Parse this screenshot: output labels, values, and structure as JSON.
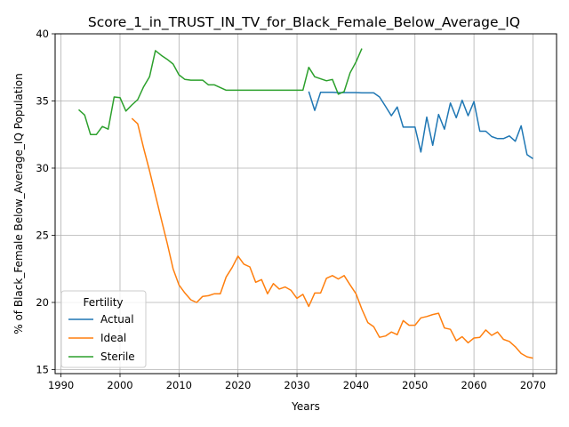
{
  "chart_data": {
    "type": "line",
    "title": "Score_1_in_TRUST_IN_TV_for_Black_Female_Below_Average_IQ",
    "xlabel": "Years",
    "ylabel": "% of Black_Female Below_Average_IQ Population",
    "xlim": [
      1989,
      2074
    ],
    "ylim": [
      14.7,
      40.0
    ],
    "xticks": [
      1990,
      2000,
      2010,
      2020,
      2030,
      2040,
      2050,
      2060,
      2070
    ],
    "yticks": [
      15,
      20,
      25,
      30,
      35,
      40
    ],
    "grid": true,
    "legend": {
      "title": "Fertility",
      "placement": "lower-left"
    },
    "series": [
      {
        "name": "Actual",
        "color": "#1f77b4",
        "x": [
          2032,
          2033,
          2034,
          2035,
          2036,
          2037,
          2038,
          2039,
          2040,
          2041,
          2042,
          2043,
          2044,
          2045,
          2046,
          2047,
          2048,
          2049,
          2050,
          2051,
          2052,
          2053,
          2054,
          2055,
          2056,
          2057,
          2058,
          2059,
          2060,
          2061,
          2062,
          2063,
          2064,
          2065,
          2066,
          2067,
          2068,
          2069,
          2070
        ],
        "y": [
          35.7,
          34.3,
          35.65,
          35.65,
          35.65,
          35.62,
          35.62,
          35.62,
          35.62,
          35.6,
          35.6,
          35.6,
          35.3,
          34.6,
          33.9,
          34.55,
          33.05,
          33.05,
          33.05,
          31.2,
          33.8,
          31.7,
          34.0,
          32.9,
          34.85,
          33.75,
          35.05,
          33.9,
          34.95,
          32.75,
          32.75,
          32.35,
          32.2,
          32.2,
          32.4,
          32.0,
          33.15,
          31.0,
          30.7
        ]
      },
      {
        "name": "Ideal",
        "color": "#ff7f0e",
        "x": [
          2002,
          2003,
          2004,
          2005,
          2006,
          2007,
          2008,
          2009,
          2010,
          2011,
          2012,
          2013,
          2014,
          2015,
          2016,
          2017,
          2018,
          2019,
          2020,
          2021,
          2022,
          2023,
          2024,
          2025,
          2026,
          2027,
          2028,
          2029,
          2030,
          2031,
          2032,
          2033,
          2034,
          2035,
          2036,
          2037,
          2038,
          2039,
          2040,
          2041,
          2042,
          2043,
          2044,
          2045,
          2046,
          2047,
          2048,
          2049,
          2050,
          2051,
          2052,
          2053,
          2054,
          2055,
          2056,
          2057,
          2058,
          2059,
          2060,
          2061,
          2062,
          2063,
          2064,
          2065,
          2066,
          2067,
          2068,
          2069,
          2070
        ],
        "y": [
          33.7,
          33.3,
          31.5,
          29.8,
          28.0,
          26.2,
          24.4,
          22.5,
          21.3,
          20.7,
          20.2,
          20.0,
          20.45,
          20.5,
          20.65,
          20.65,
          21.9,
          22.6,
          23.45,
          22.85,
          22.65,
          21.5,
          21.7,
          20.65,
          21.4,
          21.0,
          21.15,
          20.9,
          20.3,
          20.6,
          19.7,
          20.7,
          20.7,
          21.8,
          22.0,
          21.75,
          22.0,
          21.3,
          20.65,
          19.5,
          18.5,
          18.2,
          17.4,
          17.5,
          17.8,
          17.6,
          18.65,
          18.3,
          18.3,
          18.85,
          18.95,
          19.1,
          19.2,
          18.1,
          18.0,
          17.15,
          17.45,
          17.0,
          17.35,
          17.4,
          17.95,
          17.55,
          17.8,
          17.25,
          17.1,
          16.7,
          16.2,
          15.95,
          15.85
        ]
      },
      {
        "name": "Sterile",
        "color": "#2ca02c",
        "x": [
          1993,
          1994,
          1995,
          1996,
          1997,
          1998,
          1999,
          2000,
          2001,
          2002,
          2003,
          2004,
          2005,
          2006,
          2007,
          2008,
          2009,
          2010,
          2011,
          2012,
          2013,
          2014,
          2015,
          2016,
          2017,
          2018,
          2019,
          2020,
          2021,
          2022,
          2023,
          2024,
          2025,
          2026,
          2027,
          2028,
          2029,
          2030,
          2031,
          2032,
          2033,
          2034,
          2035,
          2036,
          2037,
          2038,
          2039,
          2040,
          2041
        ],
        "y": [
          34.35,
          33.95,
          32.5,
          32.5,
          33.1,
          32.9,
          35.3,
          35.25,
          34.25,
          34.7,
          35.1,
          36.05,
          36.8,
          38.75,
          38.4,
          38.1,
          37.75,
          36.95,
          36.6,
          36.55,
          36.55,
          36.55,
          36.2,
          36.2,
          36.0,
          35.8,
          35.8,
          35.8,
          35.8,
          35.8,
          35.8,
          35.8,
          35.8,
          35.8,
          35.8,
          35.8,
          35.8,
          35.8,
          35.8,
          37.5,
          36.8,
          36.65,
          36.5,
          36.6,
          35.5,
          35.7,
          37.1,
          37.9,
          38.9
        ]
      }
    ]
  }
}
